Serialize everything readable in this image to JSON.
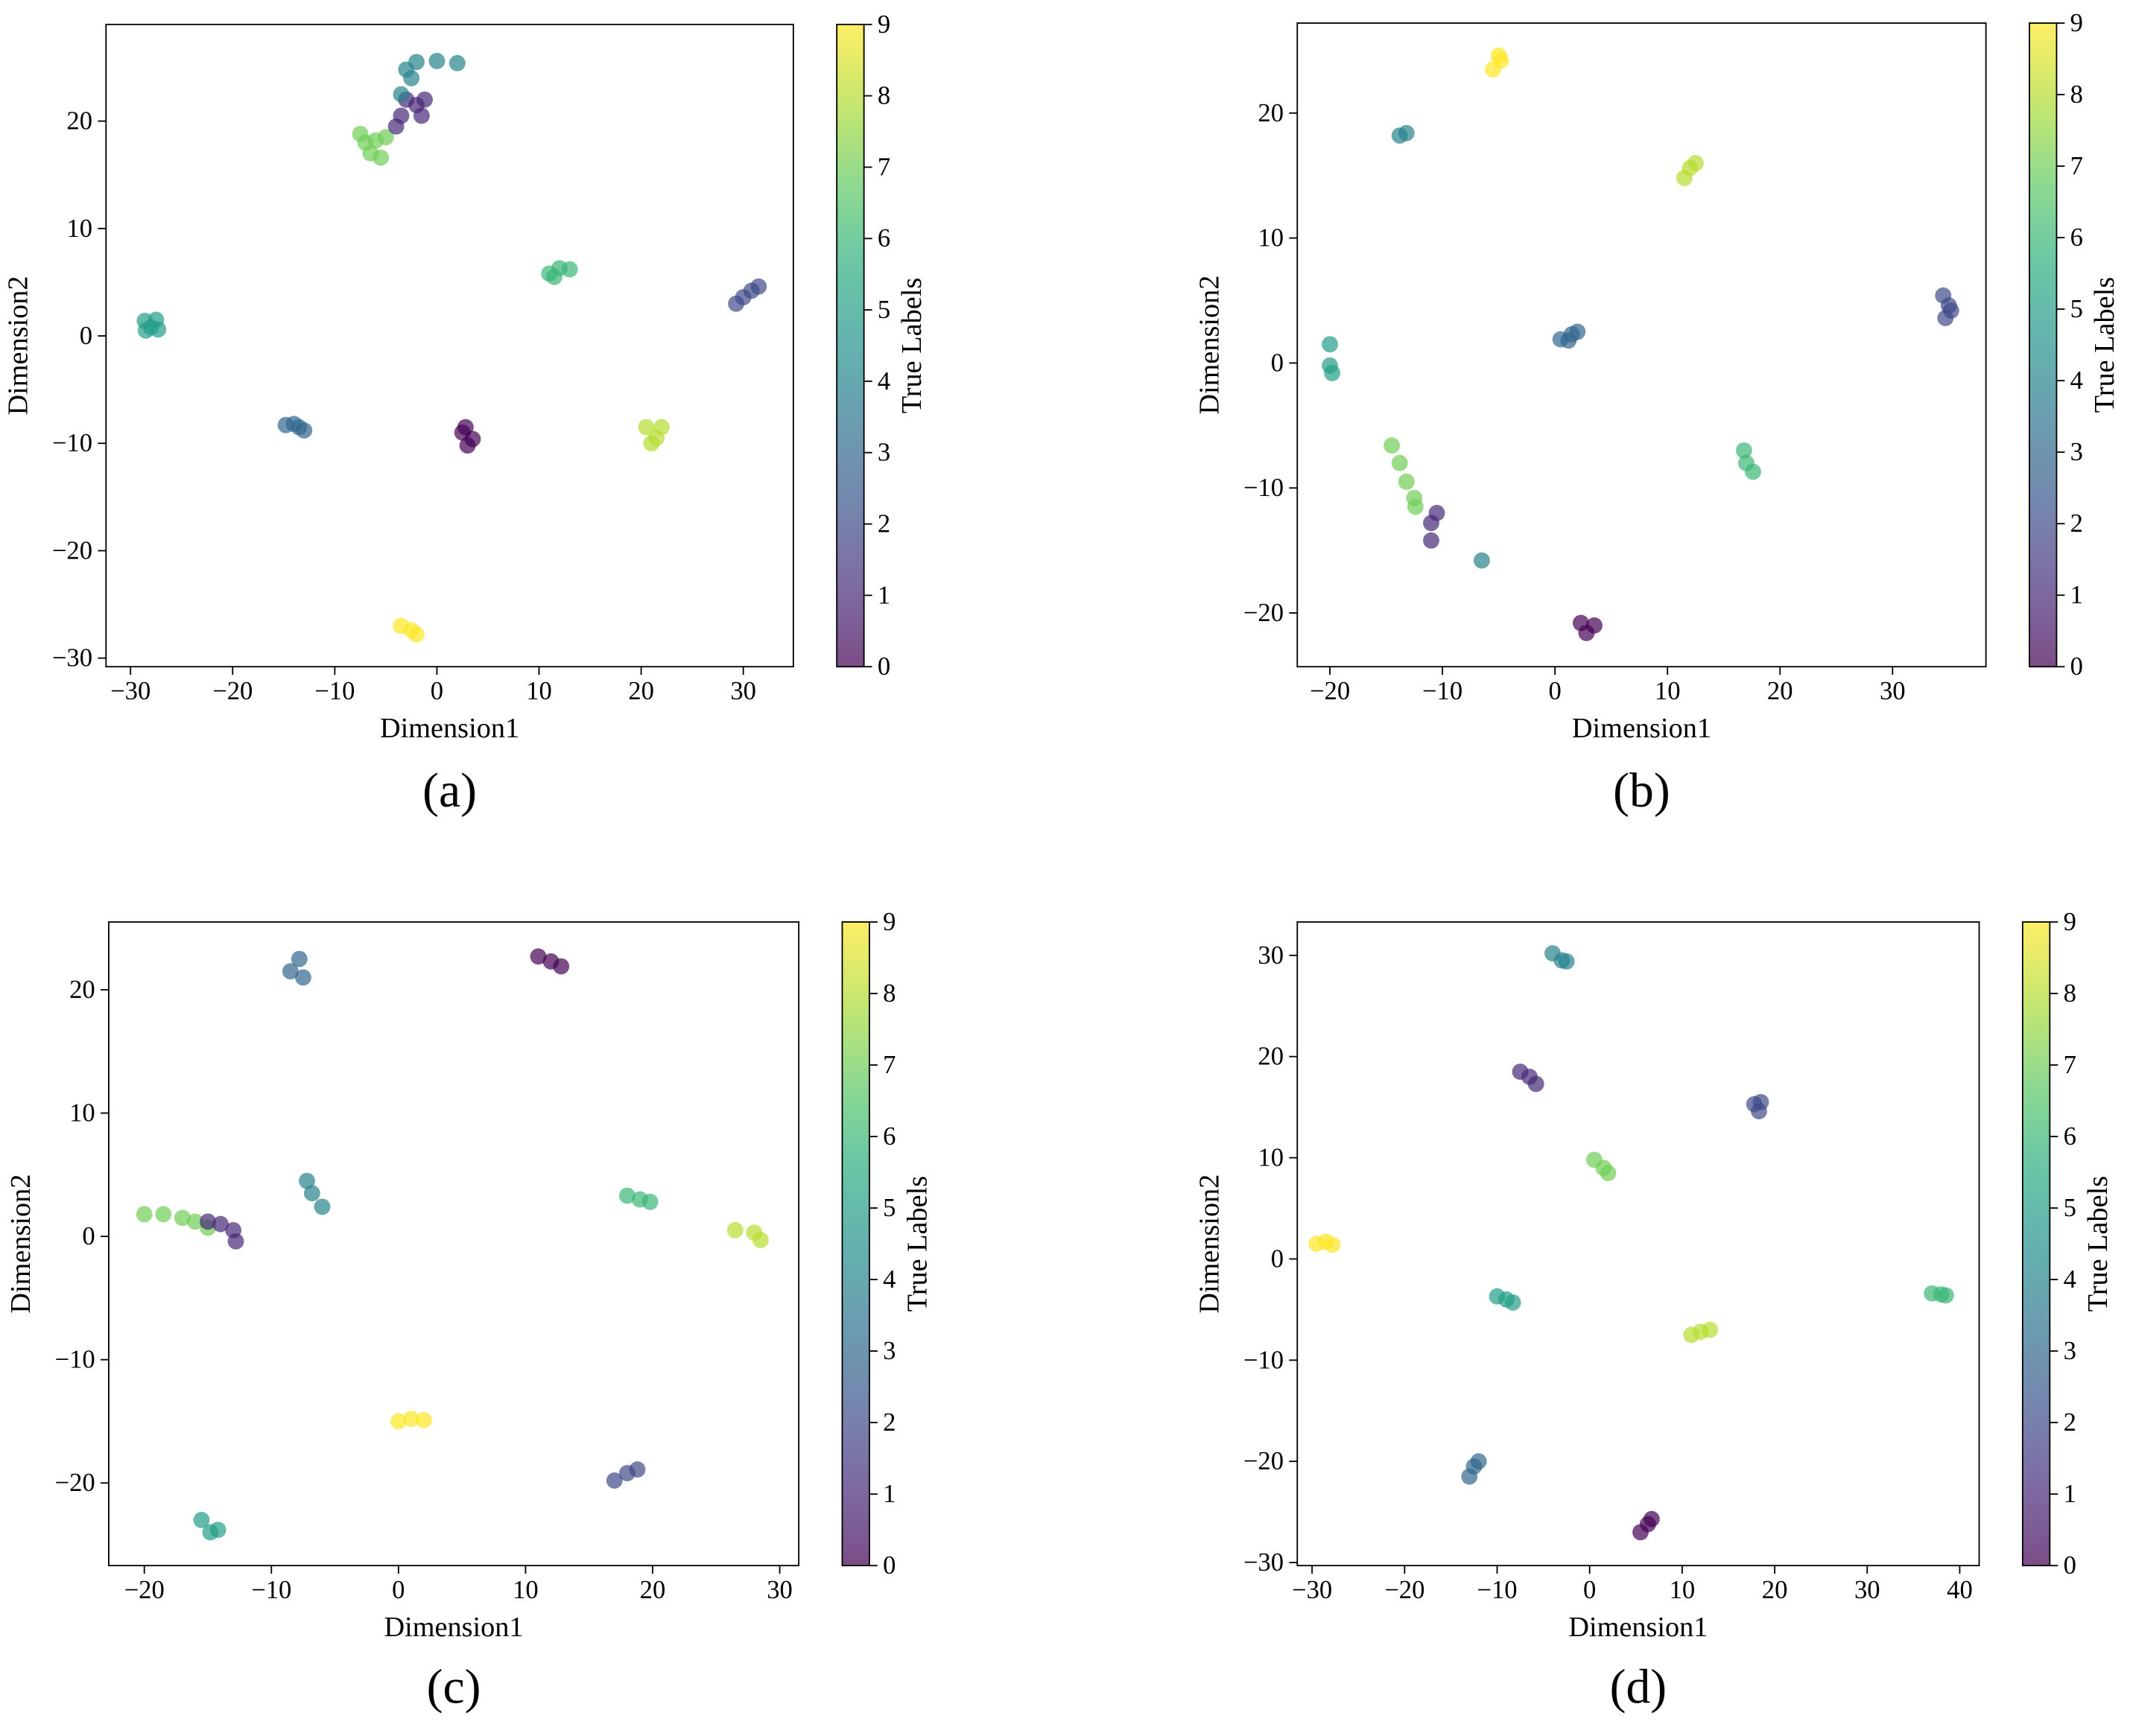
{
  "chart_data": [
    {
      "type": "scatter",
      "caption": "(a)",
      "xlabel": "Dimension1",
      "ylabel": "Dimension2",
      "colorbar_label": "True Labels",
      "colormap": "viridis",
      "alpha": 0.7,
      "clim": [
        0,
        9
      ],
      "cticks": [
        0,
        1,
        2,
        3,
        4,
        5,
        6,
        7,
        8,
        9
      ],
      "xlim": [
        -32.4,
        34.9
      ],
      "ylim": [
        -30.8,
        29.0
      ],
      "xticks": [
        {
          "value": -30,
          "label": "−30"
        },
        {
          "value": -20,
          "label": "−20"
        },
        {
          "value": -10,
          "label": "−10"
        },
        0,
        10,
        20,
        30
      ],
      "yticks": [
        {
          "value": -30,
          "label": "−30"
        },
        {
          "value": -20,
          "label": "−20"
        },
        {
          "value": -10,
          "label": "−10"
        },
        0,
        10,
        20
      ],
      "x": [
        -28.5,
        -27.5,
        -28,
        -27.3,
        -28.6,
        -14.8,
        -13.5,
        -13,
        -14,
        2.5,
        3.5,
        3,
        2.8,
        20.5,
        21.5,
        21,
        22,
        -3.5,
        -2.5,
        -2,
        11,
        12,
        13,
        11.5,
        29.3,
        30,
        30.8,
        31.5,
        -7.5,
        -6,
        -6.5,
        -5.5,
        -7,
        -5,
        -3.5,
        -2,
        -1.5,
        -3,
        -4,
        -1.2,
        -3.5,
        -2.5,
        -2,
        0,
        2,
        -3
      ],
      "values": [
        0.5,
        1.5,
        0.8,
        0.6,
        1.4,
        -8.3,
        -8.5,
        -8.8,
        -8.2,
        -9,
        -9.6,
        -10.2,
        -8.5,
        -8.5,
        -9.5,
        -10,
        -8.5,
        -27,
        -27.4,
        -27.8,
        5.8,
        6.3,
        6.2,
        5.5,
        3,
        3.6,
        4.2,
        4.6,
        18.8,
        18.2,
        17,
        16.6,
        18,
        18.5,
        20.5,
        21.5,
        20.5,
        22,
        19.5,
        22,
        22.5,
        24,
        25.5,
        25.6,
        25.4,
        24.8
      ],
      "labels": [
        5,
        5,
        5,
        5,
        5,
        3,
        3,
        3,
        3,
        0,
        0,
        0,
        0,
        8,
        8,
        8,
        8,
        9,
        9,
        9,
        6,
        6,
        6,
        6,
        2,
        2,
        2,
        2,
        7,
        7,
        7,
        7,
        7,
        7,
        1,
        1,
        1,
        1,
        1,
        1,
        4,
        4,
        4,
        4,
        4,
        4
      ]
    },
    {
      "type": "scatter",
      "caption": "(b)",
      "xlabel": "Dimension1",
      "ylabel": "Dimension2",
      "colorbar_label": "True Labels",
      "colormap": "viridis",
      "alpha": 0.7,
      "clim": [
        0,
        9
      ],
      "cticks": [
        0,
        1,
        2,
        3,
        4,
        5,
        6,
        7,
        8,
        9
      ],
      "xlim": [
        -22.9,
        38.3
      ],
      "ylim": [
        -24.3,
        27.2
      ],
      "xticks": [
        {
          "value": -20,
          "label": "−20"
        },
        {
          "value": -10,
          "label": "−10"
        },
        0,
        10,
        20,
        30
      ],
      "yticks": [
        {
          "value": -20,
          "label": "−20"
        },
        {
          "value": -10,
          "label": "−10"
        },
        0,
        10,
        20
      ],
      "x": [
        -5.5,
        -4.8,
        -5,
        -13.8,
        -13.2,
        11.5,
        12,
        12.5,
        34.5,
        35,
        34.7,
        35.2,
        0.5,
        1.5,
        2,
        1.2,
        -20,
        -20,
        -19.8,
        -14.5,
        -13.8,
        -13.2,
        -12.5,
        -12.4,
        -10.5,
        -11,
        -11,
        -6.5,
        16.8,
        17,
        17.6,
        2.3,
        3.5,
        2.8
      ],
      "values": [
        23.5,
        24.2,
        24.6,
        18.2,
        18.4,
        14.8,
        15.6,
        16,
        5.4,
        4.6,
        3.6,
        4.2,
        1.9,
        2.3,
        2.5,
        1.8,
        1.5,
        -0.2,
        -0.8,
        -6.6,
        -8,
        -9.5,
        -10.8,
        -11.5,
        -12,
        -12.8,
        -14.2,
        -15.8,
        -7,
        -8,
        -8.7,
        -20.8,
        -21,
        -21.6
      ],
      "labels": [
        9,
        9,
        9,
        4,
        4,
        8,
        8,
        8,
        2,
        2,
        2,
        2,
        3,
        3,
        3,
        3,
        5,
        5,
        5,
        7,
        7,
        7,
        7,
        7,
        1,
        1,
        1,
        4,
        6,
        6,
        6,
        0,
        0,
        0
      ]
    },
    {
      "type": "scatter",
      "caption": "(c)",
      "xlabel": "Dimension1",
      "ylabel": "Dimension2",
      "colorbar_label": "True Labels",
      "colormap": "viridis",
      "alpha": 0.7,
      "clim": [
        0,
        9
      ],
      "cticks": [
        0,
        1,
        2,
        3,
        4,
        5,
        6,
        7,
        8,
        9
      ],
      "xlim": [
        -22.8,
        31.5
      ],
      "ylim": [
        -26.7,
        25.5
      ],
      "xticks": [
        {
          "value": -20,
          "label": "−20"
        },
        {
          "value": -10,
          "label": "−10"
        },
        0,
        10,
        20,
        30
      ],
      "yticks": [
        {
          "value": -20,
          "label": "−20"
        },
        {
          "value": -10,
          "label": "−10"
        },
        0,
        10,
        20
      ],
      "x": [
        -8.5,
        -7.8,
        -7.5,
        11,
        12,
        12.8,
        -7.2,
        -6.8,
        -6,
        -20,
        -18.5,
        -17,
        -16,
        -15,
        -15,
        -14,
        -13,
        -12.8,
        18,
        19,
        19.8,
        26.5,
        28,
        28.5,
        0,
        1,
        2,
        17,
        18,
        18.8,
        -15.5,
        -14.8,
        -14.2
      ],
      "values": [
        21.5,
        22.5,
        21,
        22.7,
        22.3,
        21.9,
        4.5,
        3.5,
        2.4,
        1.8,
        1.8,
        1.5,
        1.2,
        0.7,
        1.2,
        1,
        0.5,
        -0.4,
        3.3,
        3,
        2.8,
        0.5,
        0.3,
        -0.3,
        -15,
        -14.8,
        -14.9,
        -19.8,
        -19.2,
        -18.9,
        -23,
        -24,
        -23.8
      ],
      "labels": [
        3,
        3,
        3,
        0,
        0,
        0,
        4,
        4,
        4,
        7,
        7,
        7,
        7,
        7,
        1,
        1,
        1,
        1,
        6,
        6,
        6,
        8,
        8,
        8,
        9,
        9,
        9,
        2,
        2,
        2,
        5,
        5,
        5
      ]
    },
    {
      "type": "scatter",
      "caption": "(d)",
      "xlabel": "Dimension1",
      "ylabel": "Dimension2",
      "colorbar_label": "True Labels",
      "colormap": "viridis",
      "alpha": 0.7,
      "clim": [
        0,
        9
      ],
      "cticks": [
        0,
        1,
        2,
        3,
        4,
        5,
        6,
        7,
        8,
        9
      ],
      "xlim": [
        -31.6,
        42.1
      ],
      "ylim": [
        -30.3,
        33.3
      ],
      "xticks": [
        {
          "value": -30,
          "label": "−30"
        },
        {
          "value": -20,
          "label": "−20"
        },
        {
          "value": -10,
          "label": "−10"
        },
        0,
        10,
        20,
        30,
        40
      ],
      "yticks": [
        {
          "value": -30,
          "label": "−30"
        },
        {
          "value": -20,
          "label": "−20"
        },
        {
          "value": -10,
          "label": "−10"
        },
        0,
        10,
        20,
        30
      ],
      "x": [
        -4,
        -3,
        -2.5,
        -7.5,
        -6.5,
        -5.8,
        17.8,
        18.3,
        18.5,
        0.5,
        1.5,
        2,
        -29.5,
        -28.5,
        -27.8,
        -10,
        -9,
        -8.3,
        11,
        12,
        13,
        37,
        38,
        38.5,
        -13,
        -12.5,
        -12,
        5.5,
        6.3,
        6.7
      ],
      "values": [
        30.2,
        29.5,
        29.4,
        18.5,
        18,
        17.3,
        15.3,
        14.6,
        15.5,
        9.8,
        9,
        8.5,
        1.5,
        1.7,
        1.4,
        -3.7,
        -4,
        -4.3,
        -7.5,
        -7.2,
        -7,
        -3.4,
        -3.5,
        -3.6,
        -21.5,
        -20.5,
        -20,
        -27,
        -26.2,
        -25.7
      ],
      "labels": [
        4,
        4,
        4,
        1,
        1,
        1,
        2,
        2,
        2,
        7,
        7,
        7,
        9,
        9,
        9,
        5,
        5,
        5,
        8,
        8,
        8,
        6,
        6,
        6,
        3,
        3,
        3,
        0,
        0,
        0
      ]
    }
  ]
}
